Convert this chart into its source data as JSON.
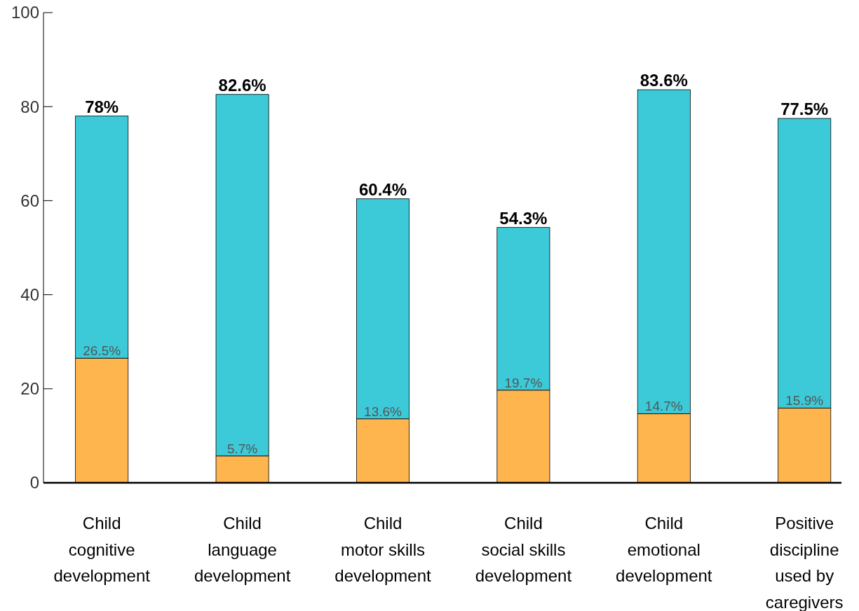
{
  "chart_data": {
    "type": "bar",
    "stacked": true,
    "categories": [
      "Child\ncognitive\ndevelopment",
      "Child\nlanguage\ndevelopment",
      "Child\nmotor skills\ndevelopment",
      "Child\nsocial skills\ndevelopment",
      "Child\nemotional\ndevelopment",
      "Positive\ndiscipline\nused by\ncaregivers"
    ],
    "series": [
      {
        "color": "#ffb54d",
        "values": [
          26.5,
          5.7,
          13.6,
          19.7,
          14.7,
          15.9
        ],
        "value_labels": [
          "26.5%",
          "5.7%",
          "13.6%",
          "19.7%",
          "14.7%",
          "15.9%"
        ]
      },
      {
        "color": "#3ccad9",
        "values": [
          51.5,
          76.9,
          46.8,
          34.6,
          68.9,
          61.6
        ]
      }
    ],
    "totals": [
      "78%",
      "82.6%",
      "60.4%",
      "54.3%",
      "83.6%",
      "77.5%"
    ],
    "ylim": [
      0,
      100
    ],
    "yticks": [
      0,
      20,
      40,
      60,
      80,
      100
    ],
    "grid": false
  }
}
